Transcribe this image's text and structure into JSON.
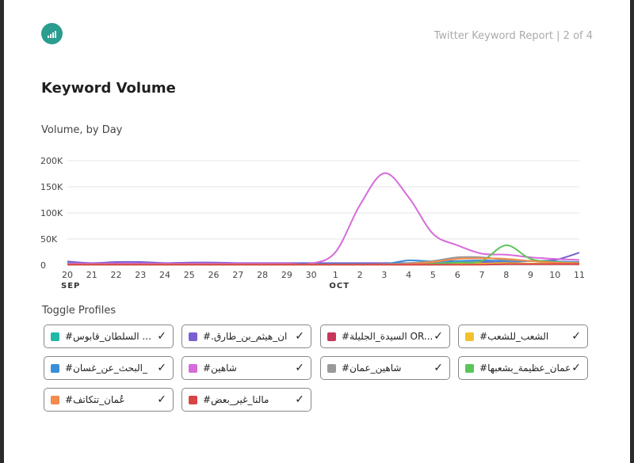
{
  "header": {
    "logo_icon": "bar-chart-icon",
    "report_label": "Twitter Keyword Report | 2 of 4"
  },
  "section": {
    "title": "Keyword Volume",
    "subtitle": "Volume, by Day"
  },
  "chart_data": {
    "type": "line",
    "x": [
      "20",
      "21",
      "22",
      "23",
      "24",
      "25",
      "26",
      "27",
      "28",
      "29",
      "30",
      "1",
      "2",
      "3",
      "4",
      "5",
      "6",
      "7",
      "8",
      "9",
      "10",
      "11"
    ],
    "month_labels": [
      {
        "at": "20",
        "label": "SEP"
      },
      {
        "at": "1",
        "label": "OCT"
      }
    ],
    "ylim": [
      0,
      200000
    ],
    "yticks": [
      0,
      50000,
      100000,
      150000,
      200000
    ],
    "ytick_labels": [
      "0",
      "50K",
      "100K",
      "150K",
      "200K"
    ],
    "grid": true,
    "series": [
      {
        "name": "#السلطان_قابوس ...",
        "color": "#22b8a8",
        "values": [
          4000,
          3000,
          3000,
          3000,
          3000,
          3000,
          3000,
          3000,
          3000,
          3000,
          2000,
          2000,
          2000,
          2000,
          3000,
          3000,
          3000,
          3000,
          4000,
          3000,
          4000,
          5000
        ]
      },
      {
        "name": "#.ان_هيثم_بن_طارق",
        "color": "#7b5fd1",
        "values": [
          7000,
          4000,
          6000,
          6000,
          4000,
          5000,
          5000,
          4000,
          4000,
          4000,
          4000,
          4000,
          4000,
          4000,
          4000,
          4000,
          5000,
          6000,
          6000,
          8000,
          10000,
          24000
        ]
      },
      {
        "name": "#السيدة_الجليلة OR...",
        "color": "#c8365b",
        "values": [
          1000,
          1000,
          1000,
          1000,
          1000,
          1000,
          1000,
          1000,
          1000,
          1000,
          1000,
          1000,
          1000,
          1000,
          1000,
          1000,
          2000,
          2000,
          2000,
          2000,
          2000,
          2000
        ]
      },
      {
        "name": "#الشعب_للشعب",
        "color": "#f2c12e",
        "values": [
          1000,
          1000,
          1000,
          1000,
          1000,
          1000,
          1000,
          1000,
          1000,
          1000,
          1000,
          1000,
          1000,
          1000,
          2000,
          3000,
          3000,
          3000,
          4000,
          3000,
          3000,
          3000
        ]
      },
      {
        "name": "#البحث_عن_غسان_",
        "color": "#3b8fd9",
        "values": [
          2000,
          2000,
          2000,
          2000,
          2000,
          2000,
          2000,
          2000,
          2000,
          2000,
          2000,
          2000,
          2000,
          2000,
          9000,
          7000,
          8000,
          9000,
          8000,
          8000,
          7000,
          6000
        ]
      },
      {
        "name": "#شاهين",
        "color": "#d66bd9",
        "values": [
          3000,
          3000,
          3000,
          3000,
          3000,
          3000,
          3000,
          3000,
          3000,
          3000,
          3000,
          25000,
          115000,
          176000,
          130000,
          60000,
          38000,
          22000,
          20000,
          15000,
          12000,
          10000
        ]
      },
      {
        "name": "#شاهين_عمان",
        "color": "#999999",
        "values": [
          1000,
          1000,
          1000,
          1000,
          1000,
          1000,
          1000,
          1000,
          1000,
          1000,
          1000,
          1000,
          1000,
          2000,
          4000,
          8000,
          15000,
          15000,
          10000,
          8000,
          6000,
          5000
        ]
      },
      {
        "name": "#عمان_عظيمة_بشعبها",
        "color": "#5cc45a",
        "values": [
          1000,
          1000,
          1000,
          1000,
          1000,
          1000,
          1000,
          1000,
          1000,
          1000,
          1000,
          1000,
          1000,
          1000,
          2000,
          3000,
          5000,
          8000,
          38000,
          12000,
          6000,
          4000
        ]
      },
      {
        "name": "#عُمان_تتكاتف",
        "color": "#f28b4b",
        "values": [
          1000,
          1000,
          1000,
          1000,
          1000,
          1000,
          1000,
          1000,
          1000,
          1000,
          1000,
          1000,
          1000,
          1000,
          2000,
          6000,
          12000,
          13000,
          12000,
          8000,
          5000,
          4000
        ]
      },
      {
        "name": "#مالنا_غير_بعض",
        "color": "#d94444",
        "values": [
          1000,
          1000,
          1000,
          1000,
          1000,
          1000,
          1000,
          1000,
          1000,
          1000,
          1000,
          1000,
          1000,
          1000,
          1000,
          1000,
          1000,
          1000,
          2000,
          2000,
          2000,
          2000
        ]
      }
    ]
  },
  "toggle": {
    "title": "Toggle Profiles",
    "check_icon": "check-icon",
    "profiles": [
      {
        "label": "#السلطان_قابوس ...",
        "color": "#22b8a8",
        "checked": "✓"
      },
      {
        "label": "#.ان_هيثم_بن_طارق",
        "color": "#7b5fd1",
        "checked": "✓"
      },
      {
        "label": "#السيدة_الجليلة OR...",
        "color": "#c8365b",
        "checked": "✓"
      },
      {
        "label": "#الشعب_للشعب",
        "color": "#f2c12e",
        "checked": "✓"
      },
      {
        "label": "#البحث_عن_غسان_",
        "color": "#3b8fd9",
        "checked": "✓"
      },
      {
        "label": "#شاهين",
        "color": "#d66bd9",
        "checked": "✓"
      },
      {
        "label": "#شاهين_عمان",
        "color": "#999999",
        "checked": "✓"
      },
      {
        "label": "#عمان_عظيمة_بشعبها",
        "color": "#5cc45a",
        "checked": "✓"
      },
      {
        "label": "#عُمان_تتكاتف",
        "color": "#f28b4b",
        "checked": "✓"
      },
      {
        "label": "#مالنا_غير_بعض",
        "color": "#d94444",
        "checked": "✓"
      }
    ]
  }
}
